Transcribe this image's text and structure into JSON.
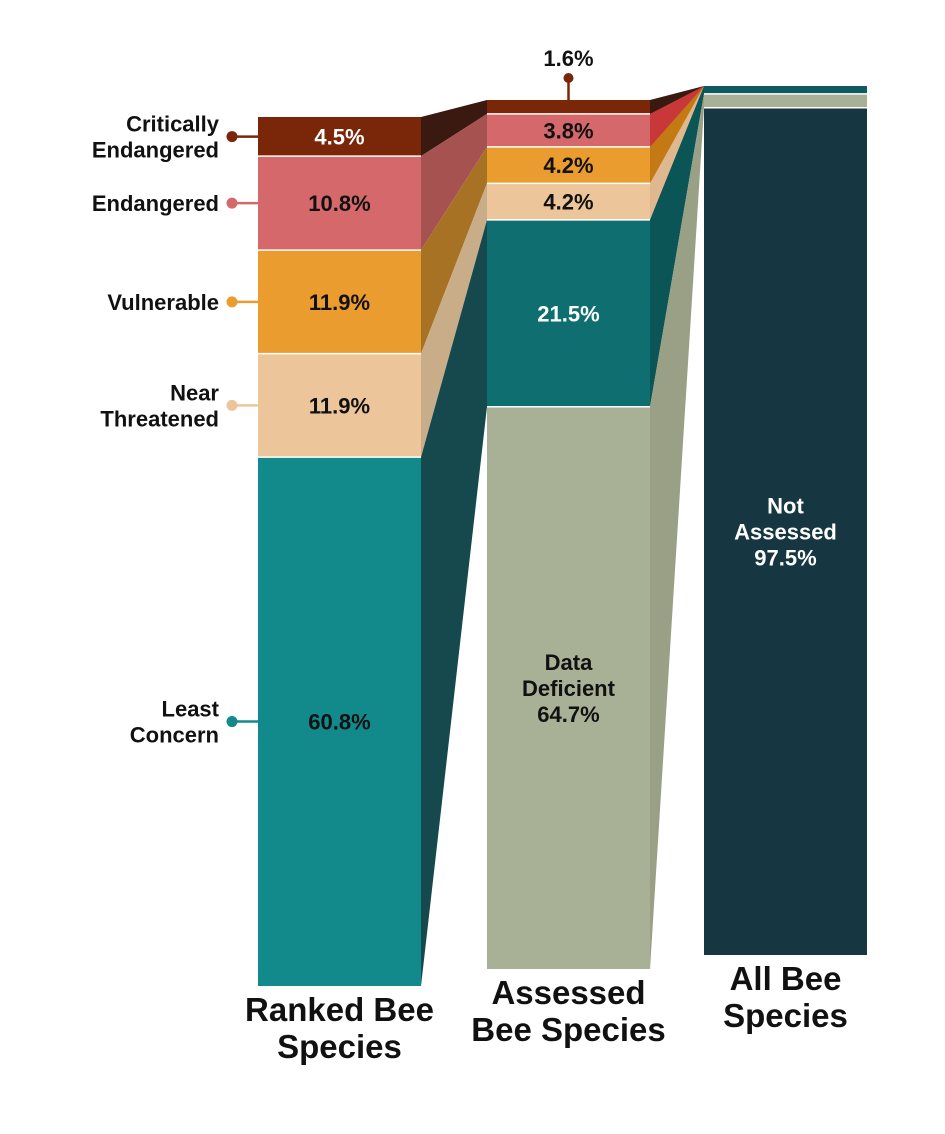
{
  "chart_data": {
    "type": "bar",
    "stacked": true,
    "legend_position": "left",
    "grid": false,
    "title": "",
    "xlabel": "",
    "ylabel": "",
    "categories": [
      "Ranked Bee Species",
      "Assessed Bee Species",
      "All Bee Species"
    ],
    "category_lines": [
      [
        "Ranked Bee",
        "Species"
      ],
      [
        "Assessed",
        "Bee Species"
      ],
      [
        "All Bee",
        "Species"
      ]
    ],
    "series": [
      {
        "name": "Critically Endangered",
        "legend_lines": [
          "Critically",
          "Endangered"
        ],
        "color": "#7a2609",
        "values": [
          4.5,
          null,
          null
        ],
        "labels": [
          "4.5%",
          "",
          ""
        ]
      },
      {
        "name": "Endangered",
        "legend_lines": [
          "Endangered"
        ],
        "color": "#d4686a",
        "values": [
          10.8,
          null,
          null
        ],
        "labels": [
          "10.8%",
          "",
          ""
        ]
      },
      {
        "name": "Vulnerable",
        "legend_lines": [
          "Vulnerable"
        ],
        "color": "#eb9c2e",
        "values": [
          11.9,
          null,
          null
        ],
        "labels": [
          "11.9%",
          "",
          ""
        ]
      },
      {
        "name": "Near Threatened",
        "legend_lines": [
          "Near",
          "Threatened"
        ],
        "color": "#ecc69a",
        "values": [
          11.9,
          null,
          null
        ],
        "labels": [
          "11.9%",
          "",
          ""
        ]
      },
      {
        "name": "Least Concern",
        "legend_lines": [
          "Least",
          "Concern"
        ],
        "color": "#128a8c",
        "values": [
          60.8,
          null,
          null
        ],
        "labels": [
          "60.8%",
          "",
          ""
        ]
      }
    ],
    "columns": [
      {
        "category": "Ranked Bee Species",
        "segments": [
          {
            "key": "Critically Endangered",
            "value": 4.5,
            "color": "#7a2609",
            "label_lines": [
              "4.5%"
            ],
            "label_color": "#ffffff"
          },
          {
            "key": "Endangered",
            "value": 10.8,
            "color": "#d4686a",
            "label_lines": [
              "10.8%"
            ],
            "label_color": "#111111"
          },
          {
            "key": "Vulnerable",
            "value": 11.9,
            "color": "#eb9c2e",
            "label_lines": [
              "11.9%"
            ],
            "label_color": "#111111"
          },
          {
            "key": "Near Threatened",
            "value": 11.9,
            "color": "#ecc69a",
            "label_lines": [
              "11.9%"
            ],
            "label_color": "#111111"
          },
          {
            "key": "Least Concern",
            "value": 60.8,
            "color": "#128a8c",
            "label_lines": [
              "60.8%"
            ],
            "label_color": "#111111"
          }
        ]
      },
      {
        "category": "Assessed Bee Species",
        "segments": [
          {
            "key": "Ranked (Critically Endangered)",
            "value": 1.6,
            "color": "#7a2609",
            "label_lines": [
              "1.6%"
            ],
            "label_color": "#111111",
            "label_outside": true
          },
          {
            "key": "Ranked (Endangered)",
            "value": 3.8,
            "color": "#d4686a",
            "label_lines": [
              "3.8%"
            ],
            "label_color": "#111111"
          },
          {
            "key": "Ranked (Vulnerable)",
            "value": 4.2,
            "color": "#eb9c2e",
            "label_lines": [
              "4.2%"
            ],
            "label_color": "#111111"
          },
          {
            "key": "Ranked (Near Threatened)",
            "value": 4.2,
            "color": "#ecc69a",
            "label_lines": [
              "4.2%"
            ],
            "label_color": "#111111"
          },
          {
            "key": "Ranked (Least Concern)",
            "value": 21.5,
            "color": "#0f6f70",
            "label_lines": [
              "21.5%"
            ],
            "label_color": "#ffffff"
          },
          {
            "key": "Data Deficient",
            "value": 64.7,
            "color": "#a8b096",
            "label_lines": [
              "Data",
              "Deficient",
              "64.7%"
            ],
            "label_color": "#111111"
          }
        ]
      },
      {
        "category": "All Bee Species",
        "segments": [
          {
            "key": "Assessed (Ranked)",
            "value": 0.9,
            "color": "#0f5a60",
            "label_lines": [],
            "label_color": "#ffffff"
          },
          {
            "key": "Assessed (Data Deficient)",
            "value": 1.6,
            "color": "#a8b096",
            "label_lines": [],
            "label_color": "#111111"
          },
          {
            "key": "Not Assessed",
            "value": 97.5,
            "color": "#163641",
            "label_lines": [
              "Not",
              "Assessed",
              "97.5%"
            ],
            "label_color": "#ffffff"
          }
        ]
      }
    ],
    "connectors": [
      {
        "from_col": 0,
        "from_segs": [
          0
        ],
        "to_col": 1,
        "to_segs": [
          0
        ],
        "color": "#3a1a10"
      },
      {
        "from_col": 0,
        "from_segs": [
          1
        ],
        "to_col": 1,
        "to_segs": [
          1
        ],
        "color": "#a65251"
      },
      {
        "from_col": 0,
        "from_segs": [
          2
        ],
        "to_col": 1,
        "to_segs": [
          2
        ],
        "color": "#a87224"
      },
      {
        "from_col": 0,
        "from_segs": [
          3
        ],
        "to_col": 1,
        "to_segs": [
          3
        ],
        "color": "#c9ad88"
      },
      {
        "from_col": 0,
        "from_segs": [
          4
        ],
        "to_col": 1,
        "to_segs": [
          4
        ],
        "color": "#16494d"
      },
      {
        "from_col": 1,
        "from_segs": [
          0
        ],
        "to_col": 2,
        "to_segs": [
          0
        ],
        "color": "#3a1a10"
      },
      {
        "from_col": 1,
        "from_segs": [
          1
        ],
        "to_col": 2,
        "to_segs": [
          0
        ],
        "color": "#c93838"
      },
      {
        "from_col": 1,
        "from_segs": [
          2
        ],
        "to_col": 2,
        "to_segs": [
          0
        ],
        "color": "#c37a15"
      },
      {
        "from_col": 1,
        "from_segs": [
          3
        ],
        "to_col": 2,
        "to_segs": [
          0
        ],
        "color": "#e0b890"
      },
      {
        "from_col": 1,
        "from_segs": [
          4
        ],
        "to_col": 2,
        "to_segs": [
          0
        ],
        "color": "#0b5556"
      },
      {
        "from_col": 1,
        "from_segs": [
          5
        ],
        "to_col": 2,
        "to_segs": [
          1
        ],
        "color": "#9aa085"
      }
    ]
  }
}
